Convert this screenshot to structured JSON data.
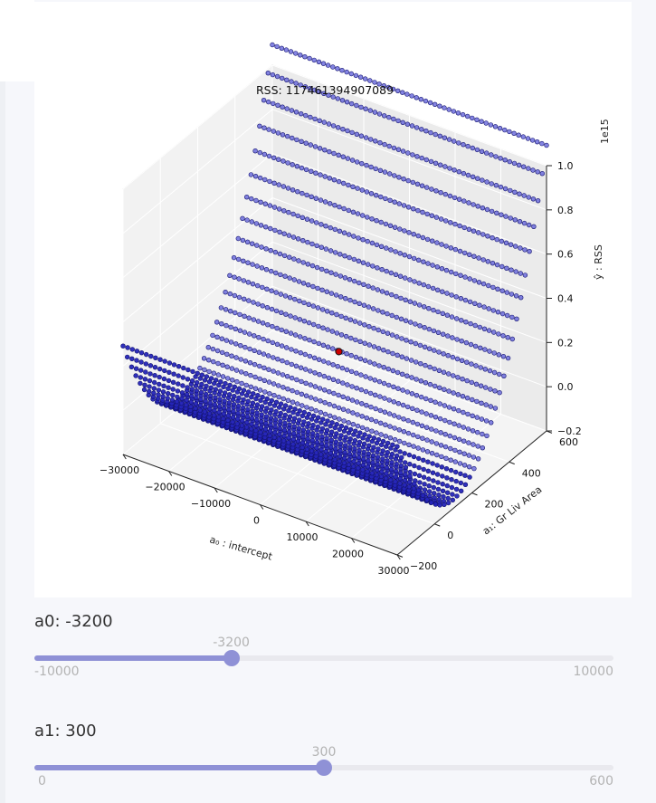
{
  "chart_data": {
    "type": "scatter",
    "subtype": "3d-surface-scatter",
    "annotation": "RSS: 117461394907089",
    "x_axis": {
      "label": "a₀ : intercept",
      "range": [
        -30000,
        30000
      ],
      "ticks": [
        "−30000",
        "−20000",
        "−10000",
        "0",
        "10000",
        "20000",
        "30000"
      ]
    },
    "y_axis": {
      "label": "a₁: Gr Liv Area",
      "range": [
        -200,
        600
      ],
      "ticks": [
        "−200",
        "0",
        "200",
        "400",
        "600"
      ]
    },
    "z_axis": {
      "label": "ŷ : RSS",
      "range": [
        -0.2,
        1.0
      ],
      "ticks": [
        "−0.2",
        "0.0",
        "0.2",
        "0.4",
        "0.6",
        "0.8",
        "1.0"
      ],
      "offset_text": "1e15"
    },
    "surface": {
      "a0_range": [
        -30000,
        30000
      ],
      "a1_range": [
        -200,
        600
      ],
      "rows": 36,
      "points_per_row": 60,
      "color": "#1f1fb4"
    },
    "highlight_point": {
      "a0": -3200,
      "a1": 300,
      "rss": 117461394907089,
      "color": "#cc0000"
    },
    "grid": true
  },
  "sliders": [
    {
      "label": "a0: -3200",
      "value": -3200,
      "value_label": "-3200",
      "min": -10000,
      "max": 10000,
      "min_label": "-10000",
      "max_label": "10000"
    },
    {
      "label": "a1: 300",
      "value": 300,
      "value_label": "300",
      "min": 0,
      "max": 600,
      "min_label": "0",
      "max_label": "600"
    }
  ],
  "colors": {
    "slider_accent": "#8f91d6",
    "slider_track": "#e9e9ee",
    "point_color": "#1f1fb4",
    "highlight": "#cc0000"
  }
}
